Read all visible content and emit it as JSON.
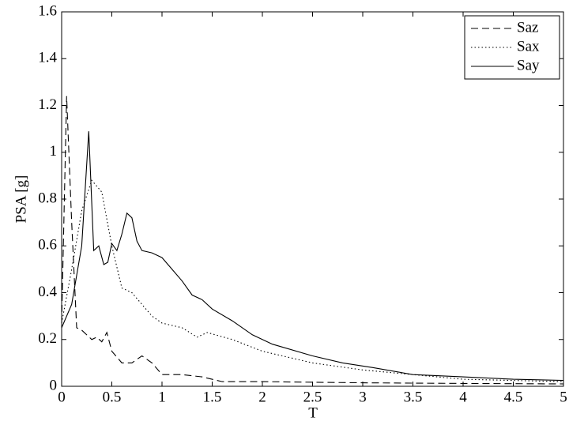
{
  "chart_data": {
    "type": "line",
    "x_label": "T",
    "y_label": "PSA [g]",
    "xlim": [
      0,
      5
    ],
    "ylim": [
      0,
      1.6
    ],
    "xticks": [
      0,
      0.5,
      1,
      1.5,
      2,
      2.5,
      3,
      3.5,
      4,
      4.5,
      5
    ],
    "yticks": [
      0,
      0.2,
      0.4,
      0.6,
      0.8,
      1,
      1.2,
      1.4,
      1.6
    ],
    "legend": "upper right",
    "series": [
      {
        "name": "Saz",
        "color": "#000000",
        "dash": "dashed",
        "x": [
          0,
          0.05,
          0.1,
          0.15,
          0.2,
          0.3,
          0.35,
          0.4,
          0.45,
          0.5,
          0.6,
          0.7,
          0.8,
          0.9,
          1.0,
          1.2,
          1.4,
          1.6,
          2,
          3,
          4,
          5
        ],
        "values": [
          0.27,
          1.24,
          0.7,
          0.25,
          0.24,
          0.2,
          0.21,
          0.19,
          0.23,
          0.15,
          0.1,
          0.1,
          0.13,
          0.1,
          0.05,
          0.05,
          0.04,
          0.02,
          0.02,
          0.015,
          0.012,
          0.01
        ]
      },
      {
        "name": "Sax",
        "color": "#000000",
        "dash": "dotted",
        "x": [
          0,
          0.1,
          0.2,
          0.3,
          0.4,
          0.5,
          0.6,
          0.7,
          0.8,
          0.9,
          1.0,
          1.2,
          1.35,
          1.45,
          1.7,
          2,
          2.5,
          3,
          3.5,
          4,
          5
        ],
        "values": [
          0.27,
          0.5,
          0.75,
          0.88,
          0.83,
          0.6,
          0.42,
          0.4,
          0.35,
          0.3,
          0.27,
          0.25,
          0.21,
          0.23,
          0.2,
          0.15,
          0.1,
          0.07,
          0.05,
          0.03,
          0.02
        ]
      },
      {
        "name": "Say",
        "color": "#000000",
        "dash": "solid",
        "x": [
          0,
          0.1,
          0.2,
          0.27,
          0.32,
          0.37,
          0.42,
          0.46,
          0.5,
          0.55,
          0.6,
          0.65,
          0.7,
          0.75,
          0.8,
          0.9,
          1.0,
          1.1,
          1.2,
          1.3,
          1.4,
          1.5,
          1.7,
          1.9,
          2.1,
          2.5,
          2.8,
          3.1,
          3.5,
          4,
          4.5,
          5
        ],
        "values": [
          0.25,
          0.35,
          0.6,
          1.09,
          0.58,
          0.6,
          0.52,
          0.53,
          0.61,
          0.58,
          0.65,
          0.74,
          0.72,
          0.62,
          0.58,
          0.57,
          0.55,
          0.5,
          0.45,
          0.39,
          0.37,
          0.33,
          0.28,
          0.22,
          0.18,
          0.13,
          0.1,
          0.08,
          0.05,
          0.04,
          0.03,
          0.025
        ]
      }
    ]
  }
}
